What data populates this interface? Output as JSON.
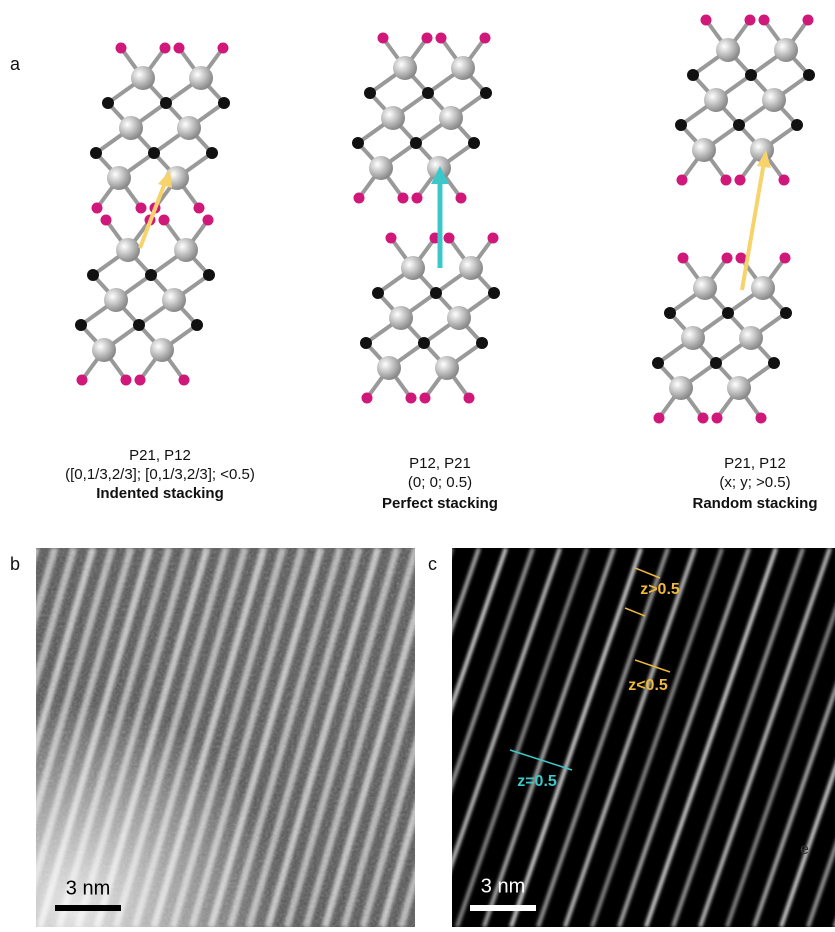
{
  "panel_a": {
    "label": "a",
    "structures": [
      {
        "line1": "P21, P12",
        "line2": "([0,1/3,2/3]; [0,1/3,2/3]; <0.5)",
        "name": "Indented stacking"
      },
      {
        "line1": "P12, P21",
        "line2": "(0; 0; 0.5)",
        "name": "Perfect stacking"
      },
      {
        "line1": "P21, P12",
        "line2": "(x; y; >0.5)",
        "name": "Random stacking"
      }
    ]
  },
  "panel_b": {
    "label": "b",
    "scale_bar": "3 nm"
  },
  "panel_c": {
    "label": "c",
    "scale_bar": "3 nm",
    "annotations": [
      "z>0.5",
      "z<0.5",
      "z=0.5"
    ],
    "corner_mark": "e"
  }
}
